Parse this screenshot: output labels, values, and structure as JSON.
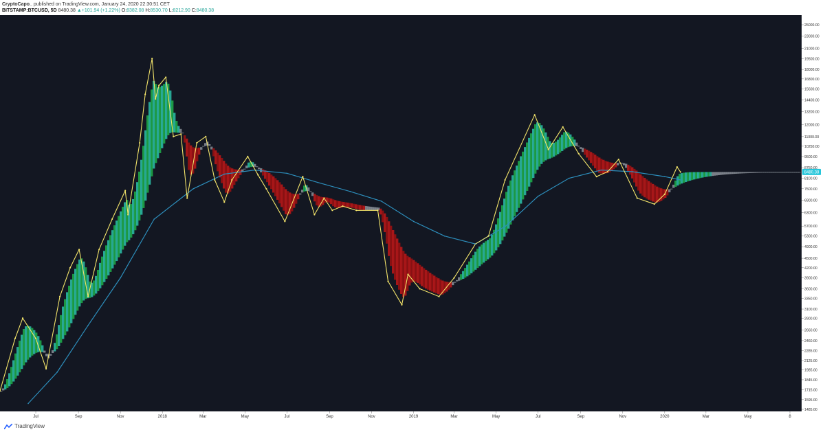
{
  "header": {
    "author": "CryptoCapo_",
    "published": " published on TradingView.com, January 24, 2020 22:30:51 CET",
    "symbol": "BITSTAMP:BTCUSD, 5D",
    "last": "8480.38",
    "change_arrow": "▲",
    "change": "+101.94 (+1.22%)",
    "o_label": "O:",
    "o_value": "8382.08",
    "h_label": "H:",
    "h_value": "8530.70",
    "l_label": "L:",
    "l_value": "8212.90",
    "c_label": "C:",
    "c_value": "8480.38"
  },
  "footer": {
    "brand": "TradingView"
  },
  "colors": {
    "background": "#131722",
    "ma_line": "#2d8fbd",
    "price_label_bg": "#26c6da",
    "candle": "#f5e66b"
  },
  "chart_data": {
    "type": "line",
    "scale": "log",
    "grid": false,
    "legend": "none",
    "current_price_label": "8480.38",
    "y_ticks": [
      "25000.00",
      "23000.00",
      "21000.00",
      "19500.00",
      "18000.00",
      "16800.00",
      "15600.00",
      "14400.00",
      "13200.00",
      "12000.00",
      "11000.00",
      "10250.00",
      "9500.00",
      "8750.00",
      "8100.00",
      "7500.00",
      "6900.00",
      "6300.00",
      "5700.00",
      "5300.00",
      "4900.00",
      "4500.00",
      "4200.00",
      "3900.00",
      "3600.00",
      "3350.00",
      "3100.00",
      "2900.00",
      "2660.00",
      "2460.00",
      "2285.00",
      "2125.00",
      "1985.00",
      "1845.00",
      "1715.00",
      "1595.00",
      "1485.00"
    ],
    "y_tick_values": [
      25000,
      23000,
      21000,
      19500,
      18000,
      16800,
      15600,
      14400,
      13200,
      12000,
      11000,
      10250,
      9500,
      8750,
      8100,
      7500,
      6900,
      6300,
      5700,
      5300,
      4900,
      4500,
      4200,
      3900,
      3600,
      3350,
      3100,
      2900,
      2660,
      2460,
      2285,
      2125,
      1985,
      1845,
      1715,
      1595,
      1485
    ],
    "x_ticks": [
      "Jul",
      "Sep",
      "Nov",
      "2018",
      "Mar",
      "May",
      "Jul",
      "Sep",
      "Nov",
      "2019",
      "Mar",
      "May",
      "Jul",
      "Sep",
      "Nov",
      "2020",
      "Mar",
      "May",
      "8"
    ],
    "x_tick_values": [
      "2017-07-01",
      "2017-09-01",
      "2017-11-01",
      "2018-01-01",
      "2018-03-01",
      "2018-05-01",
      "2018-07-01",
      "2018-09-01",
      "2018-11-01",
      "2019-01-01",
      "2019-03-01",
      "2019-05-01",
      "2019-07-01",
      "2019-09-01",
      "2019-11-01",
      "2020-01-01",
      "2020-03-01",
      "2020-05-01",
      "2020-07-01"
    ],
    "x_range": [
      "2017-05-10",
      "2020-07-18"
    ],
    "series": [
      {
        "x": [
          "2017-05-10",
          "2017-06-01",
          "2017-06-12",
          "2017-07-01",
          "2017-07-16",
          "2017-08-05",
          "2017-08-20",
          "2017-09-02",
          "2017-09-15",
          "2017-10-01",
          "2017-10-20",
          "2017-11-08",
          "2017-11-12",
          "2017-11-29",
          "2017-12-07",
          "2017-12-17",
          "2017-12-22",
          "2017-12-27",
          "2018-01-06",
          "2018-01-17",
          "2018-01-28",
          "2018-02-06",
          "2018-02-20",
          "2018-03-05",
          "2018-03-18",
          "2018-04-01",
          "2018-04-12",
          "2018-05-05",
          "2018-05-20",
          "2018-06-01",
          "2018-06-28",
          "2018-07-24",
          "2018-08-10",
          "2018-08-24",
          "2018-09-05",
          "2018-09-20",
          "2018-10-10",
          "2018-11-10",
          "2018-11-25",
          "2018-12-15",
          "2018-12-24",
          "2019-01-10",
          "2019-02-07",
          "2019-03-01",
          "2019-04-01",
          "2019-04-20",
          "2019-05-14",
          "2019-06-26",
          "2019-07-16",
          "2019-08-06",
          "2019-08-29",
          "2019-09-24",
          "2019-10-10",
          "2019-10-26",
          "2019-11-22",
          "2019-12-17",
          "2020-01-01",
          "2020-01-19",
          "2020-01-24"
        ],
        "y": [
          1700,
          2500,
          2900,
          2500,
          2000,
          3400,
          4200,
          4800,
          3400,
          4800,
          6000,
          7400,
          6200,
          10500,
          15000,
          19500,
          14500,
          16000,
          17000,
          11000,
          11200,
          7000,
          10500,
          11000,
          8000,
          6800,
          8000,
          9500,
          8300,
          7500,
          5900,
          8200,
          6200,
          7000,
          6400,
          6600,
          6400,
          6400,
          3800,
          3200,
          4000,
          3600,
          3400,
          3900,
          5000,
          5300,
          8000,
          12900,
          10000,
          11800,
          9700,
          8200,
          8500,
          9300,
          7000,
          6700,
          7200,
          8800,
          8480
        ]
      },
      {
        "x": [
          "2017-06-20",
          "2017-08-01",
          "2017-09-15",
          "2017-11-01",
          "2017-12-20",
          "2018-02-15",
          "2018-04-01",
          "2018-05-15",
          "2018-07-01",
          "2018-08-15",
          "2018-10-01",
          "2018-11-15",
          "2019-01-01",
          "2019-02-15",
          "2019-04-01",
          "2019-05-15",
          "2019-07-01",
          "2019-08-15",
          "2019-10-01",
          "2019-11-15",
          "2020-01-01",
          "2020-01-24"
        ],
        "y": [
          1550,
          1950,
          2750,
          3900,
          6000,
          7500,
          8350,
          8600,
          8400,
          7850,
          7350,
          6850,
          5900,
          5300,
          5000,
          5700,
          7100,
          8100,
          8600,
          8500,
          8200,
          8000
        ]
      }
    ]
  }
}
